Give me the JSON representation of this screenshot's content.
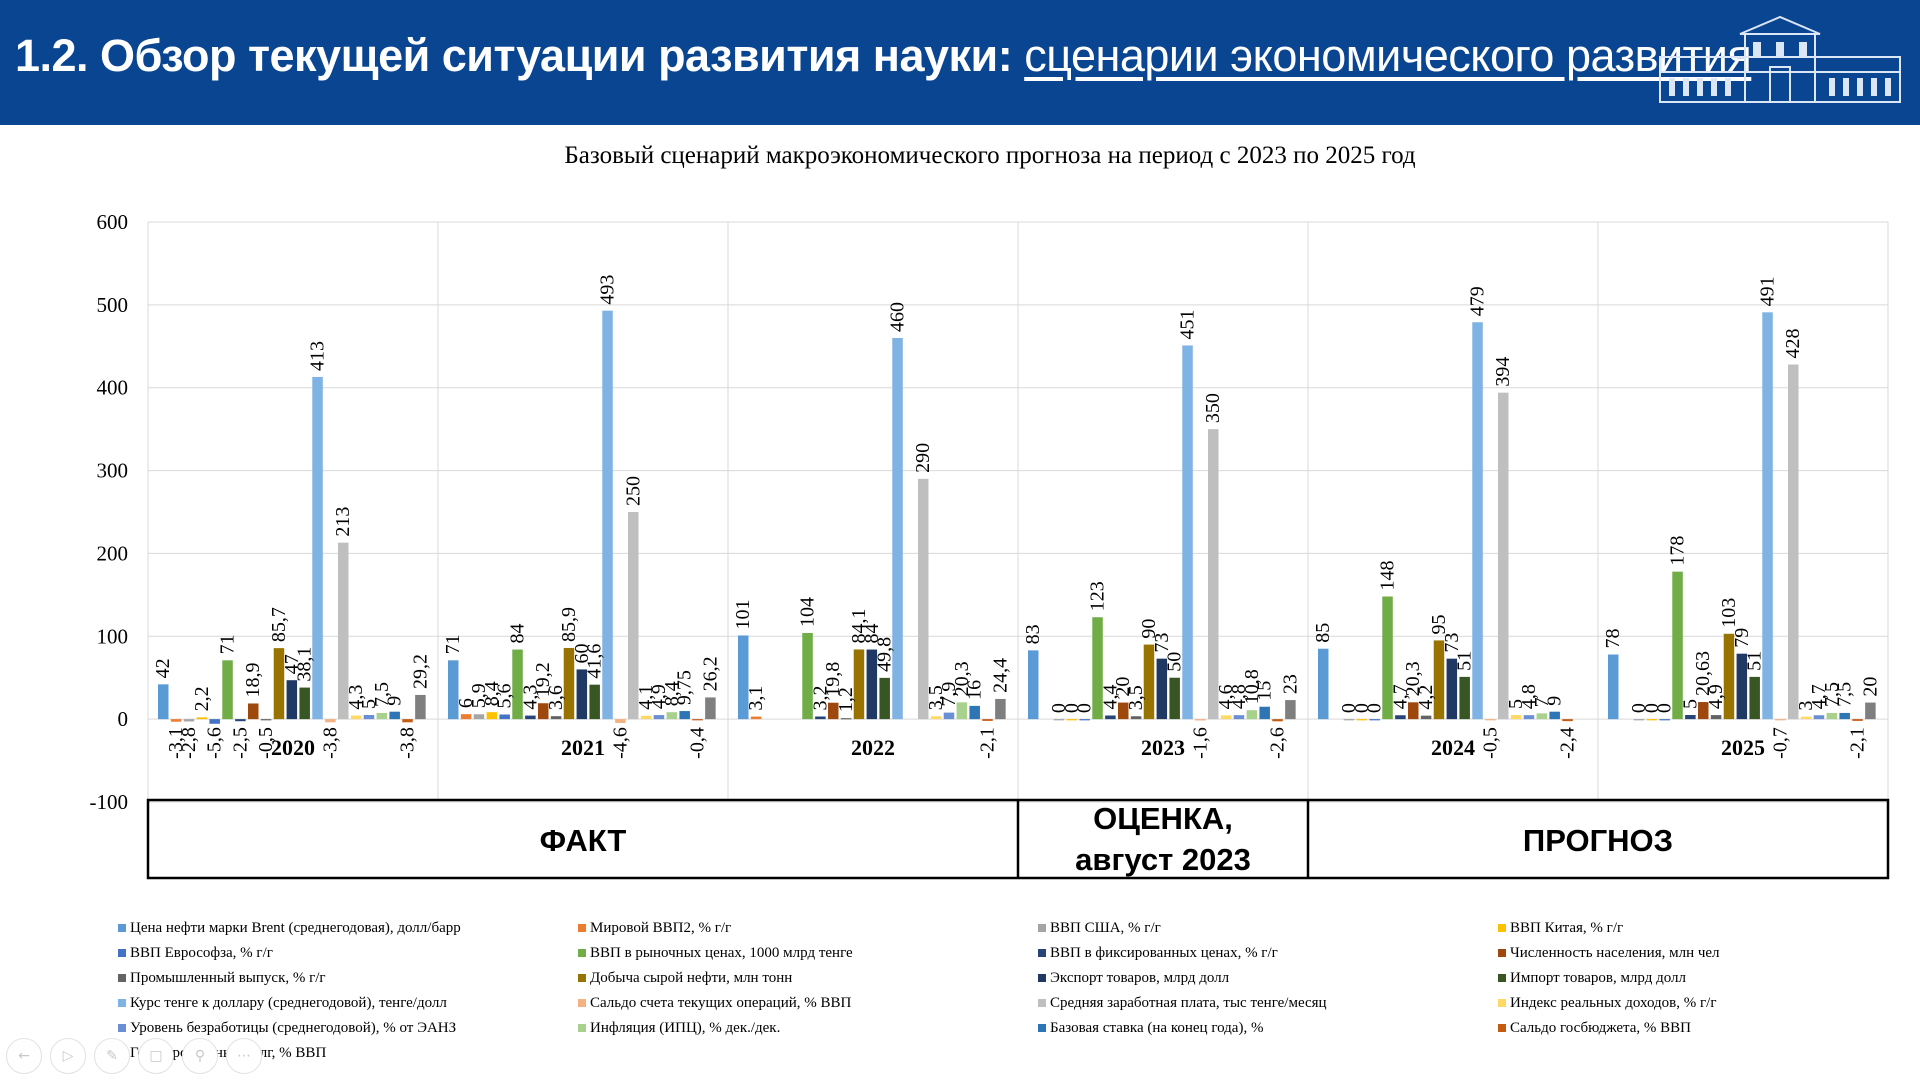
{
  "slide": {
    "title_main": "1.2. Обзор текущей ситуации развития науки: ",
    "title_sub": "сценарии экономического развития"
  },
  "nav": {
    "icons": [
      "prev-icon",
      "play-icon",
      "pen-icon",
      "slides-icon",
      "zoom-icon",
      "more-icon"
    ]
  },
  "chart_data": {
    "type": "bar",
    "title": "Базовый сценарий макроэкономического прогноза на период с 2023 по 2025 год",
    "xlabel": "",
    "ylabel": "",
    "ylim": [
      -100,
      600
    ],
    "yticks": [
      "-100",
      "0",
      "100",
      "200",
      "300",
      "400",
      "500",
      "600"
    ],
    "ytick_values": [
      -100,
      0,
      100,
      200,
      300,
      400,
      500,
      600
    ],
    "grid": true,
    "legend_position": "bottom",
    "categories": [
      "2020",
      "2021",
      "2022",
      "2023",
      "2024",
      "2025"
    ],
    "phases": [
      {
        "label": "ФАКТ",
        "from": 0,
        "to": 2
      },
      {
        "label": "ОЦЕНКА, август 2023",
        "from": 3,
        "to": 3
      },
      {
        "label": "ПРОГНОЗ",
        "from": 4,
        "to": 5
      }
    ],
    "series": [
      {
        "name": "Цена нефти марки Brent (среднегодовая), долл/барр",
        "color": "#5b9bd5",
        "values": [
          42,
          71,
          101,
          83,
          85,
          78
        ],
        "labels": [
          "42",
          "71",
          "101",
          "83",
          "85",
          "78"
        ]
      },
      {
        "name": "Мировой ВВП2, % г/г",
        "color": "#ed7d31",
        "values": [
          -3.1,
          6,
          3.1,
          null,
          null,
          null
        ],
        "labels": [
          "-3,1",
          "6",
          "3,1",
          "",
          "",
          ""
        ]
      },
      {
        "name": "ВВП США, % г/г",
        "color": "#a5a5a5",
        "values": [
          -2.8,
          5.9,
          null,
          0,
          0,
          0
        ],
        "labels": [
          "-2,8",
          "5,9",
          "",
          "0",
          "0",
          "0"
        ]
      },
      {
        "name": "ВВП Китая, % г/г",
        "color": "#ffc000",
        "values": [
          2.2,
          8.4,
          null,
          0,
          0,
          0
        ],
        "labels": [
          "2,2",
          "8,4",
          "",
          "0",
          "0",
          "0"
        ]
      },
      {
        "name": "ВВП Еврософза, % г/г",
        "color": "#4472c4",
        "values": [
          -5.6,
          5.6,
          null,
          0,
          0,
          0
        ],
        "labels": [
          "-5,6",
          "5,6",
          "",
          "0",
          "0",
          "0"
        ]
      },
      {
        "name": "ВВП в рыночных ценах,  1000 млрд тенге",
        "color": "#70ad47",
        "values": [
          71,
          84,
          104,
          123,
          148,
          178
        ],
        "labels": [
          "71",
          "84",
          "104",
          "123",
          "148",
          "178"
        ]
      },
      {
        "name": "ВВП в фиксированных  ценах, % г/г",
        "color": "#264478",
        "values": [
          -2.5,
          4.3,
          3.2,
          4.4,
          4.7,
          5
        ],
        "labels": [
          "-2,5",
          "4,3",
          "3,2",
          "4,4",
          "4,7",
          "5"
        ]
      },
      {
        "name": "Численность населения, млн чел",
        "color": "#9e480e",
        "values": [
          18.9,
          19.2,
          19.8,
          20,
          20.3,
          20.63
        ],
        "labels": [
          "18,9",
          "19,2",
          "19,8",
          "20",
          "20,3",
          "20,63"
        ]
      },
      {
        "name": "Промышленный выпуск, % г/г",
        "color": "#636363",
        "values": [
          -0.5,
          3.6,
          1.2,
          3.5,
          4.2,
          4.9
        ],
        "labels": [
          "-0,5",
          "3,6",
          "1,2",
          "3,5",
          "4,2",
          "4,9"
        ]
      },
      {
        "name": "Добыча сырой нефти, млн тонн",
        "color": "#997300",
        "values": [
          85.7,
          85.9,
          84.1,
          90,
          95,
          103
        ],
        "labels": [
          "85,7",
          "85,9",
          "84,1",
          "90",
          "95",
          "103"
        ]
      },
      {
        "name": "Экспорт товаров, млрд долл",
        "color": "#203864",
        "values": [
          47,
          60,
          84,
          73,
          73,
          79
        ],
        "labels": [
          "47",
          "60",
          "84",
          "73",
          "73",
          "79"
        ]
      },
      {
        "name": "Импорт товаров, млрд долл",
        "color": "#375623",
        "values": [
          38.1,
          41.6,
          49.8,
          50,
          51,
          51
        ],
        "labels": [
          "38,1",
          "41,6",
          "49,8",
          "50",
          "51",
          "51"
        ]
      },
      {
        "name": "Курс тенге к доллару (среднегодовой), тенге/долл",
        "color": "#7fb3e3",
        "values": [
          413,
          493,
          460,
          451,
          479,
          491
        ],
        "labels": [
          "413",
          "493",
          "460",
          "451",
          "479",
          "491"
        ]
      },
      {
        "name": "Сальдо счета текущих операций, % ВВП",
        "color": "#f4b183",
        "values": [
          -3.8,
          -4.6,
          null,
          -1.6,
          -0.5,
          -0.7
        ],
        "labels": [
          "-3,8",
          "-4,6",
          "",
          "-1,6",
          "-0,5",
          "-0,7"
        ]
      },
      {
        "name": "Средняя заработная плата, тыс тенге/месяц",
        "color": "#bfbfbf",
        "values": [
          213,
          250,
          290,
          350,
          394,
          428
        ],
        "labels": [
          "213",
          "250",
          "290",
          "350",
          "394",
          "428"
        ]
      },
      {
        "name": "Индекс реальных доходов, % г/г",
        "color": "#ffd966",
        "values": [
          4.3,
          4.1,
          3.5,
          4.6,
          5,
          3
        ],
        "labels": [
          "4,3",
          "4,1",
          "3,5",
          "4,6",
          "5",
          "3"
        ]
      },
      {
        "name": "Уровень безработицы (среднегодовой), % от ЭАНЗ",
        "color": "#6b8fd4",
        "values": [
          5,
          4.9,
          7.9,
          4.8,
          4.8,
          4.7
        ],
        "labels": [
          "5",
          "4,9",
          "7,9",
          "4,8",
          "4,8",
          "4,7"
        ]
      },
      {
        "name": "Инфляция (ИПЦ), % дек./дек.",
        "color": "#a9d18e",
        "values": [
          7.5,
          8.4,
          20.3,
          10.8,
          7,
          7.5
        ],
        "labels": [
          "7,5",
          "8,4",
          "20,3",
          "10,8",
          "7",
          "7,5"
        ]
      },
      {
        "name": "Базовая ставка (на конец года), %",
        "color": "#2e75b6",
        "values": [
          9,
          9.75,
          16,
          15,
          9,
          7.5
        ],
        "labels": [
          "9",
          "9,75",
          "16",
          "15",
          "9",
          "7,5"
        ]
      },
      {
        "name": "Сальдо госбюджета, % ВВП",
        "color": "#c55a11",
        "values": [
          -3.8,
          -0.4,
          -2.1,
          -2.6,
          -2.4,
          -2.1
        ],
        "labels": [
          "-3,8",
          "-0,4",
          "-2,1",
          "-2,6",
          "-2,4",
          "-2,1"
        ]
      },
      {
        "name": "Государственный долг, % ВВП",
        "color": "#7f7f7f",
        "values": [
          29.2,
          26.2,
          24.4,
          23,
          null,
          20
        ],
        "labels": [
          "29,2",
          "26,2",
          "24,4",
          "23",
          "",
          "20"
        ]
      }
    ]
  }
}
